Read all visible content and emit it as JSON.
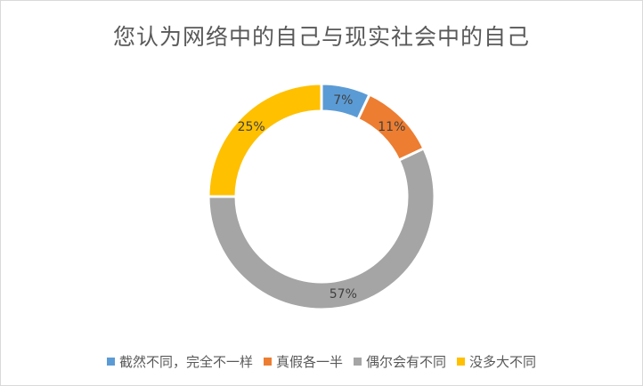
{
  "chart_data": {
    "type": "pie",
    "title": "您认为网络中的自己与现实社会中的自己",
    "donut": true,
    "categories": [
      "截然不同，完全不一样",
      "真假各一半",
      "偶尔会有不同",
      "没多大不同"
    ],
    "values": [
      7,
      11,
      57,
      25
    ],
    "labels": [
      "7%",
      "11%",
      "57%",
      "25%"
    ],
    "colors": [
      "#5B9BD5",
      "#ED7D31",
      "#A5A5A5",
      "#FFC000"
    ],
    "legend_position": "bottom"
  }
}
